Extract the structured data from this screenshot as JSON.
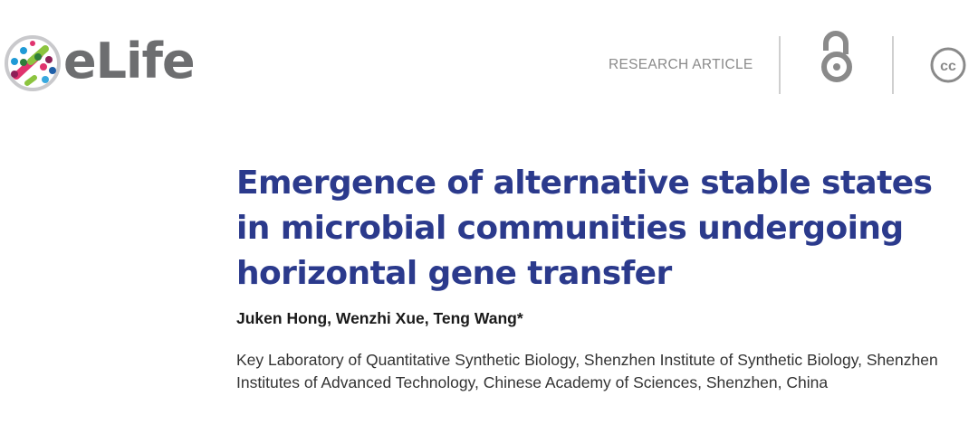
{
  "header": {
    "logo_text": "eLife",
    "article_type": "RESEARCH ARTICLE",
    "icons": [
      "open-access-icon",
      "creative-commons-icon"
    ],
    "cc_label": "cc"
  },
  "article": {
    "title": "Emergence of alternative stable states in microbial communities undergoing horizontal gene transfer",
    "authors": "Juken Hong, Wenzhi Xue, Teng Wang*",
    "affiliation": "Key Laboratory of Quantitative Synthetic Biology, Shenzhen Institute of Synthetic Biology, Shenzhen Institutes of Advanced Technology, Chinese Academy of Sciences, Shenzhen, China"
  },
  "colors": {
    "title": "#2b3a8c",
    "logo_text": "#6d6e70",
    "icon_grey": "#8a8a8a"
  }
}
